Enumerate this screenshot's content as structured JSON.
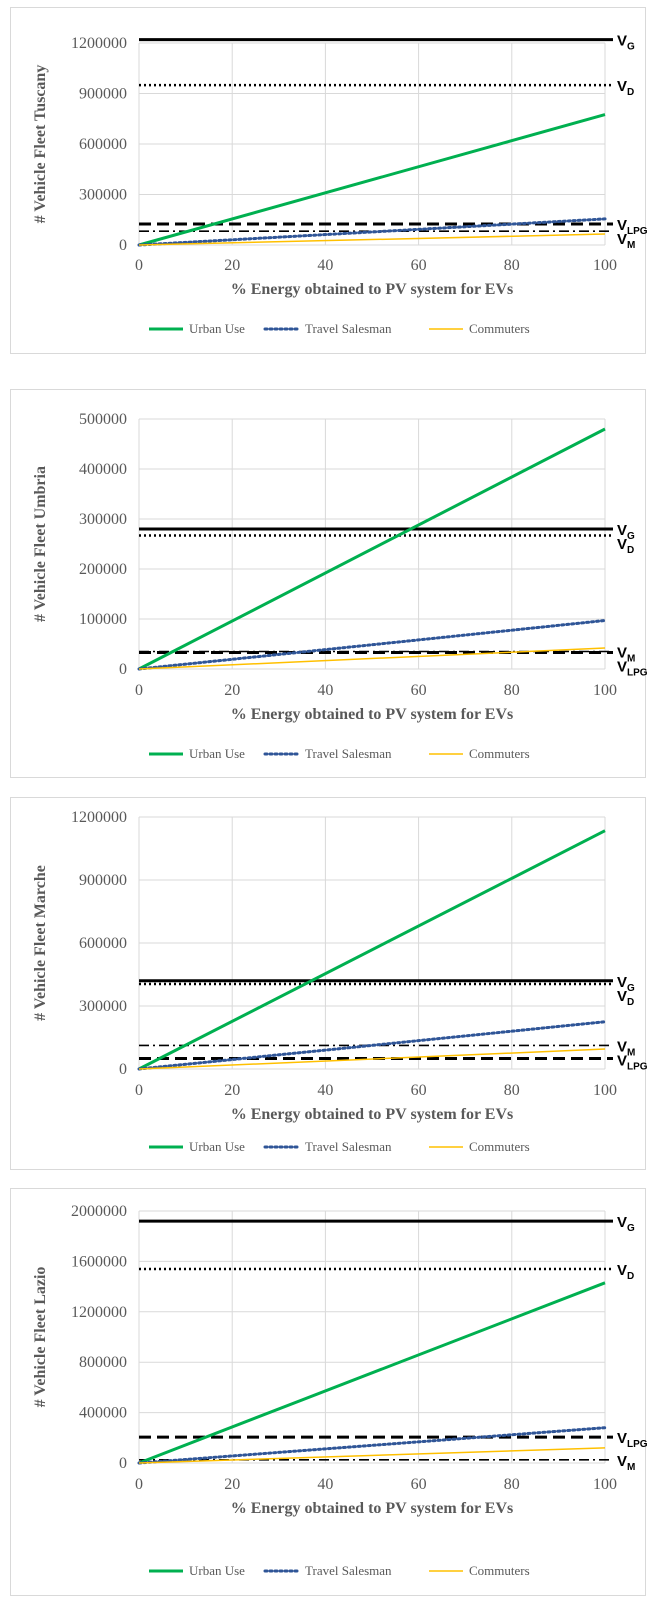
{
  "chart_data": [
    {
      "type": "line",
      "region": "Tuscany",
      "ylabel": "# Vehicle Fleet Tuscany",
      "xlabel": "% Energy obtained to PV system for EVs",
      "xlim": [
        0,
        100
      ],
      "xticks": [
        0,
        20,
        40,
        60,
        80,
        100
      ],
      "ylim": [
        0,
        1200000
      ],
      "yticks": [
        0,
        300000,
        600000,
        900000,
        1200000
      ],
      "grid": true,
      "legend": "bottom",
      "series": [
        {
          "name": "Urban Use",
          "x": [
            0,
            100
          ],
          "y": [
            0,
            775000
          ],
          "color": "#00b050",
          "dash": "solid"
        },
        {
          "name": "Travel Salesman",
          "x": [
            0,
            100
          ],
          "y": [
            0,
            155000
          ],
          "color": "#2f5597",
          "dash": "dotted"
        },
        {
          "name": "Commuters",
          "x": [
            0,
            100
          ],
          "y": [
            0,
            65000
          ],
          "color": "#ffc000",
          "dash": "solid"
        }
      ],
      "reference_lines": [
        {
          "label": "V",
          "sub": "G",
          "value": 1220000,
          "style": "solid"
        },
        {
          "label": "V",
          "sub": "D",
          "value": 950000,
          "style": "dotted"
        },
        {
          "label": "V",
          "sub": "LPG",
          "value": 125000,
          "style": "dashed"
        },
        {
          "label": "V",
          "sub": "M",
          "value": 82000,
          "style": "dashdot"
        }
      ]
    },
    {
      "type": "line",
      "region": "Umbria",
      "ylabel": "# Vehicle Fleet Umbria",
      "xlabel": "% Energy obtained to PV system for EVs",
      "xlim": [
        0,
        100
      ],
      "xticks": [
        0,
        20,
        40,
        60,
        80,
        100
      ],
      "ylim": [
        0,
        500000
      ],
      "yticks": [
        0,
        100000,
        200000,
        300000,
        400000,
        500000
      ],
      "grid": true,
      "legend": "bottom",
      "series": [
        {
          "name": "Urban Use",
          "x": [
            0,
            100
          ],
          "y": [
            0,
            480000
          ],
          "color": "#00b050",
          "dash": "solid"
        },
        {
          "name": "Travel Salesman",
          "x": [
            0,
            100
          ],
          "y": [
            0,
            97000
          ],
          "color": "#2f5597",
          "dash": "dotted"
        },
        {
          "name": "Commuters",
          "x": [
            0,
            100
          ],
          "y": [
            0,
            42000
          ],
          "color": "#ffc000",
          "dash": "solid"
        }
      ],
      "reference_lines": [
        {
          "label": "V",
          "sub": "G",
          "value": 280000,
          "style": "solid"
        },
        {
          "label": "V",
          "sub": "D",
          "value": 267000,
          "style": "dotted"
        },
        {
          "label": "V",
          "sub": "LPG",
          "value": 33000,
          "style": "dashed"
        },
        {
          "label": "V",
          "sub": "M",
          "value": 35000,
          "style": "dashdot"
        }
      ]
    },
    {
      "type": "line",
      "region": "Marche",
      "ylabel": "# Vehicle Fleet Marche",
      "xlabel": "% Energy obtained to PV system for EVs",
      "xlim": [
        0,
        100
      ],
      "xticks": [
        0,
        20,
        40,
        60,
        80,
        100
      ],
      "ylim": [
        0,
        1200000
      ],
      "yticks": [
        0,
        300000,
        600000,
        900000,
        1200000
      ],
      "grid": true,
      "legend": "bottom",
      "series": [
        {
          "name": "Urban Use",
          "x": [
            0,
            100
          ],
          "y": [
            0,
            1135000
          ],
          "color": "#00b050",
          "dash": "solid"
        },
        {
          "name": "Travel Salesman",
          "x": [
            0,
            100
          ],
          "y": [
            0,
            225000
          ],
          "color": "#2f5597",
          "dash": "dotted"
        },
        {
          "name": "Commuters",
          "x": [
            0,
            100
          ],
          "y": [
            0,
            95000
          ],
          "color": "#ffc000",
          "dash": "solid"
        }
      ],
      "reference_lines": [
        {
          "label": "V",
          "sub": "G",
          "value": 420000,
          "style": "solid"
        },
        {
          "label": "V",
          "sub": "D",
          "value": 405000,
          "style": "dotted"
        },
        {
          "label": "V",
          "sub": "M",
          "value": 112000,
          "style": "dashdot"
        },
        {
          "label": "V",
          "sub": "LPG",
          "value": 50000,
          "style": "dashed"
        }
      ]
    },
    {
      "type": "line",
      "region": "Lazio",
      "ylabel": "# Vehicle Fleet Lazio",
      "xlabel": "% Energy obtained to PV system for EVs",
      "xlim": [
        0,
        100
      ],
      "xticks": [
        0,
        20,
        40,
        60,
        80,
        100
      ],
      "ylim": [
        0,
        2000000
      ],
      "yticks": [
        0,
        400000,
        800000,
        1200000,
        1600000,
        2000000
      ],
      "grid": true,
      "legend": "bottom",
      "series": [
        {
          "name": "Urban Use",
          "x": [
            0,
            100
          ],
          "y": [
            0,
            1430000
          ],
          "color": "#00b050",
          "dash": "solid"
        },
        {
          "name": "Travel Salesman",
          "x": [
            0,
            100
          ],
          "y": [
            0,
            280000
          ],
          "color": "#2f5597",
          "dash": "dotted"
        },
        {
          "name": "Commuters",
          "x": [
            0,
            100
          ],
          "y": [
            0,
            120000
          ],
          "color": "#ffc000",
          "dash": "solid"
        }
      ],
      "reference_lines": [
        {
          "label": "V",
          "sub": "G",
          "value": 1920000,
          "style": "solid"
        },
        {
          "label": "V",
          "sub": "D",
          "value": 1540000,
          "style": "dotted"
        },
        {
          "label": "V",
          "sub": "LPG",
          "value": 205000,
          "style": "dashed"
        },
        {
          "label": "V",
          "sub": "M",
          "value": 25000,
          "style": "dashdot"
        }
      ]
    }
  ]
}
